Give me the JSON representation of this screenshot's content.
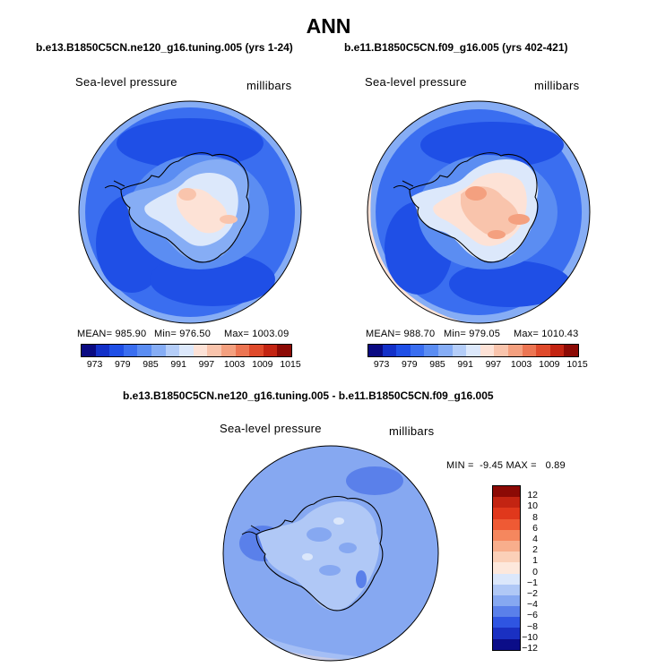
{
  "figure": {
    "title": "ANN"
  },
  "panels": [
    {
      "case_title": "b.e13.B1850C5CN.ne120_g16.tuning.005 (yrs 1-24)",
      "variable": "Sea-level pressure",
      "units": "millibars",
      "stats": {
        "mean": "MEAN= 985.90",
        "min": "Min= 976.50",
        "max": "Max= 1003.09"
      },
      "colorbar_ticks": [
        "973",
        "979",
        "985",
        "991",
        "997",
        "1003",
        "1009",
        "1015"
      ]
    },
    {
      "case_title": "b.e11.B1850C5CN.f09_g16.005 (yrs 402-421)",
      "variable": "Sea-level pressure",
      "units": "millibars",
      "stats": {
        "mean": "MEAN= 988.70",
        "min": "Min= 979.05",
        "max": "Max= 1010.43"
      },
      "colorbar_ticks": [
        "973",
        "979",
        "985",
        "991",
        "997",
        "1003",
        "1009",
        "1015"
      ]
    }
  ],
  "difference": {
    "title": "b.e13.B1850C5CN.ne120_g16.tuning.005 - b.e11.B1850C5CN.f09_g16.005",
    "variable": "Sea-level pressure",
    "units": "millibars",
    "stats": "MIN =  -9.45 MAX =   0.89",
    "colorbar_labels": [
      "12",
      "10",
      "8",
      "6",
      "4",
      "2",
      "1",
      "0",
      "-1",
      "-2",
      "-4",
      "-6",
      "-8",
      "-10",
      "-12"
    ]
  },
  "colors": {
    "abs_scale": [
      "#0a0a82",
      "#1330c8",
      "#1f4fe6",
      "#3a6ef0",
      "#5b8df2",
      "#86adf5",
      "#b4cdf8",
      "#dce8fb",
      "#fde2d6",
      "#f9c4ac",
      "#f4a07f",
      "#ec7552",
      "#df4a2b",
      "#c32412",
      "#8c0a05"
    ],
    "diff_scale": [
      "#8c0a05",
      "#c32412",
      "#e0381c",
      "#ef5a34",
      "#f5875e",
      "#f8ae8c",
      "#fbd0b8",
      "#fde8dc",
      "#dbe7fb",
      "#b0c8f6",
      "#86a8f1",
      "#5a80ea",
      "#2f55e2",
      "#1a30c2",
      "#0b0d88"
    ]
  }
}
